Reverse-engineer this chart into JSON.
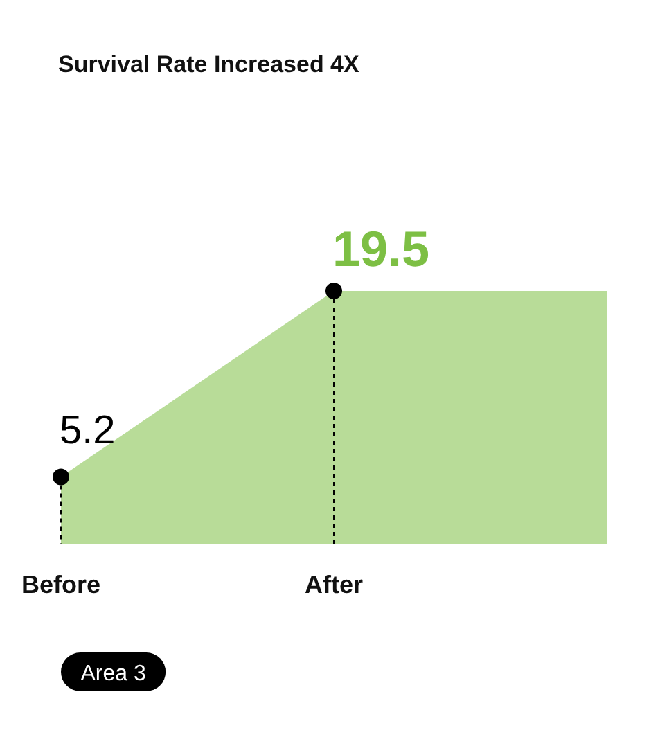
{
  "chart_data": {
    "type": "area",
    "title": "Survival Rate Increased 4X",
    "categories": [
      "Before",
      "After",
      null
    ],
    "series": [
      {
        "color": "#7dbf44",
        "values": [
          5.2,
          19.5,
          19.5
        ]
      },
      {
        "type": "scatter",
        "color": "#000000",
        "x": [
          "Before",
          "After"
        ],
        "values": [
          5.2,
          19.5
        ],
        "value_labels": [
          "5.2",
          "19.5"
        ],
        "marker": "circle"
      }
    ],
    "annotations": [
      "Area 3"
    ]
  }
}
